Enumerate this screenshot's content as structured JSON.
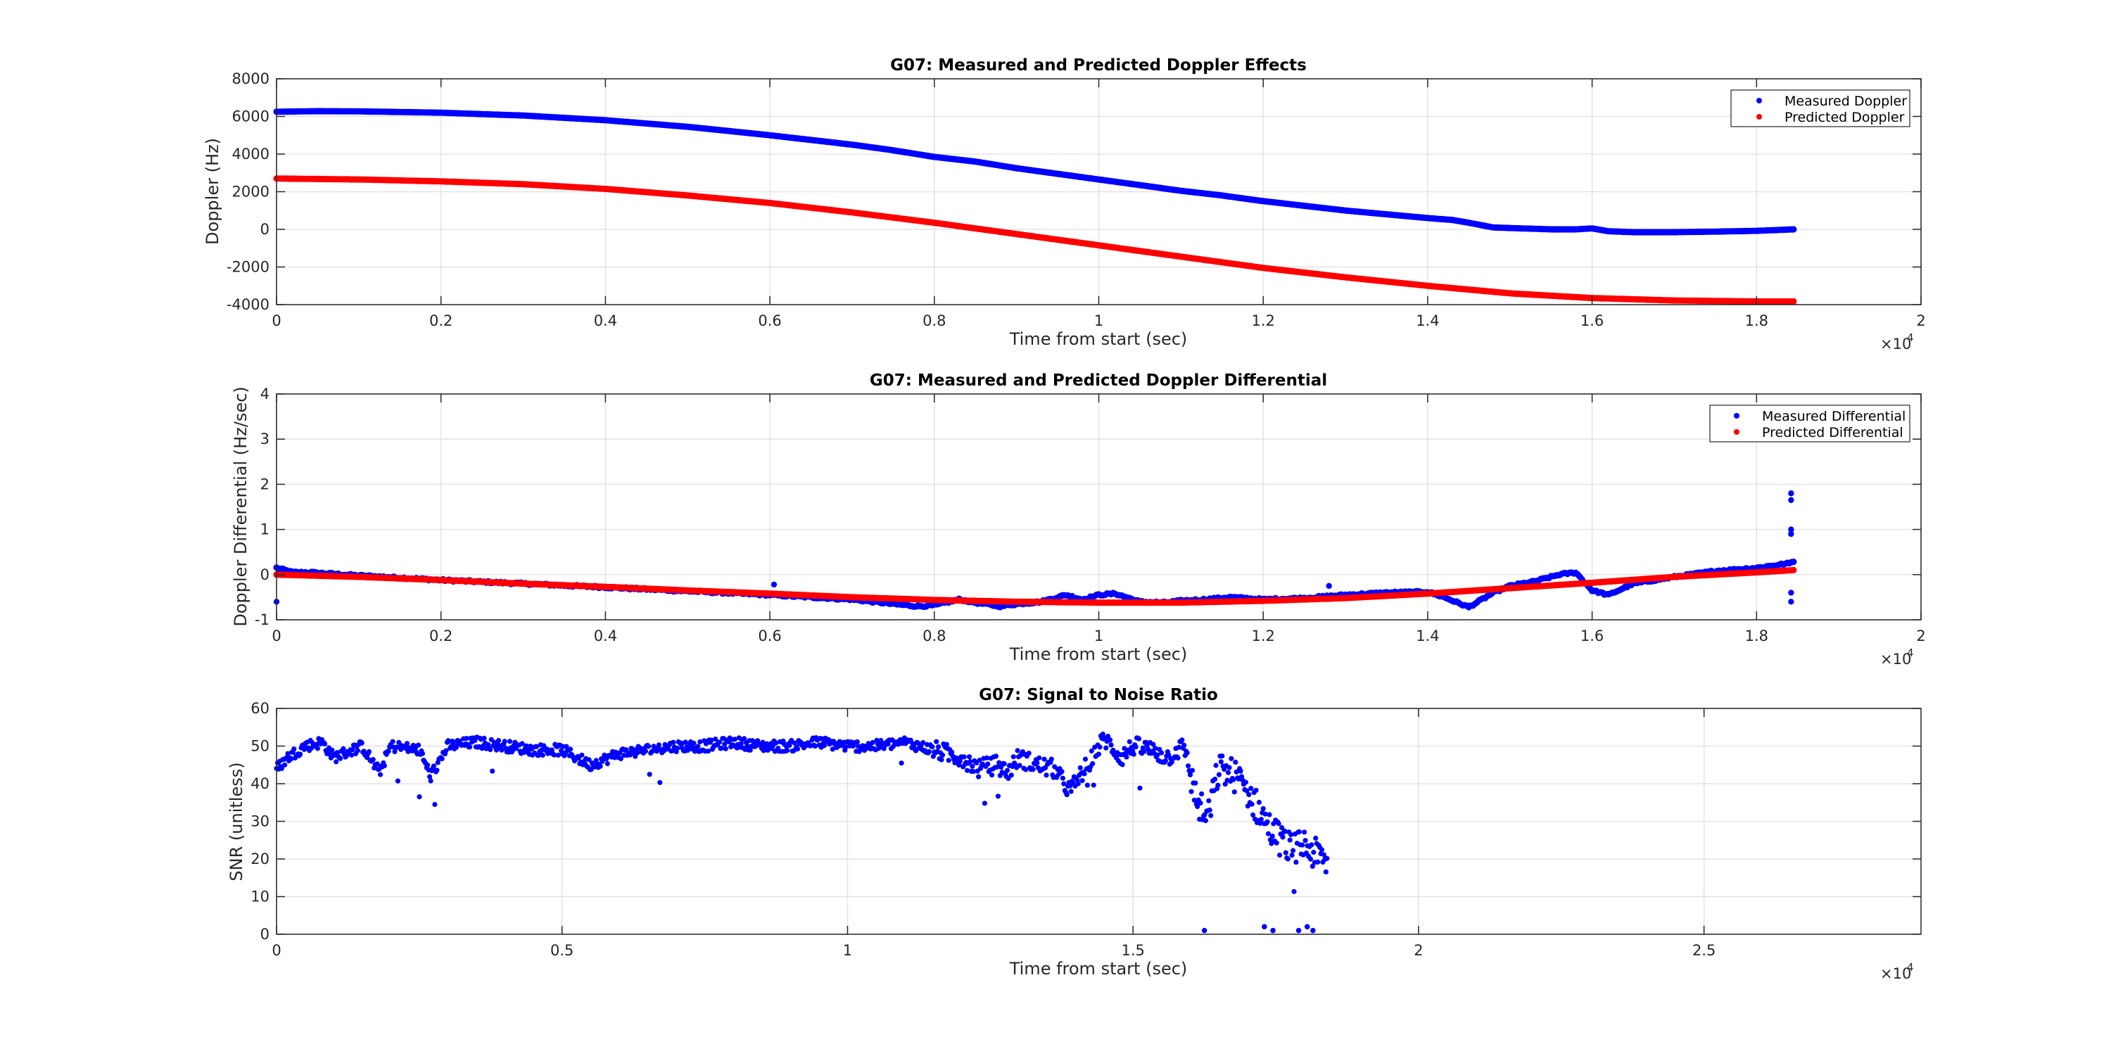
{
  "chart_data": [
    {
      "type": "scatter",
      "title": "G07: Measured and Predicted Doppler Effects",
      "xlabel": "Time from start (sec)",
      "ylabel": "Doppler (Hz)",
      "x_exponent_label": "×10",
      "x_exponent": "4",
      "xlim": [
        0,
        20000
      ],
      "ylim": [
        -4000,
        8000
      ],
      "x_ticks": [
        0,
        2000,
        4000,
        6000,
        8000,
        10000,
        12000,
        14000,
        16000,
        18000,
        20000
      ],
      "x_tick_labels": [
        "0",
        "0.2",
        "0.4",
        "0.6",
        "0.8",
        "1",
        "1.2",
        "1.4",
        "1.6",
        "1.8",
        "2"
      ],
      "y_ticks": [
        -4000,
        -2000,
        0,
        2000,
        4000,
        6000,
        8000
      ],
      "y_tick_labels": [
        "-4000",
        "-2000",
        "0",
        "2000",
        "4000",
        "6000",
        "8000"
      ],
      "grid": true,
      "legend_position": "top-right",
      "series": [
        {
          "name": "Measured Doppler",
          "color": "#0000ff",
          "x": [
            0,
            500,
            1000,
            2000,
            3000,
            4000,
            5000,
            6000,
            7000,
            7500,
            8000,
            8500,
            9000,
            9500,
            10000,
            10500,
            11000,
            11500,
            12000,
            12500,
            13000,
            13500,
            14000,
            14300,
            14500,
            14800,
            15500,
            15800,
            16000,
            16200,
            16500,
            17000,
            17500,
            18000,
            18450
          ],
          "y": [
            6250,
            6280,
            6270,
            6200,
            6050,
            5800,
            5450,
            5000,
            4500,
            4200,
            3850,
            3600,
            3250,
            2950,
            2650,
            2350,
            2050,
            1800,
            1500,
            1250,
            1000,
            800,
            600,
            500,
            350,
            100,
            0,
            0,
            50,
            -100,
            -150,
            -150,
            -120,
            -80,
            0
          ]
        },
        {
          "name": "Predicted Doppler",
          "color": "#ff0000",
          "x": [
            0,
            1000,
            2000,
            3000,
            4000,
            5000,
            6000,
            7000,
            8000,
            9000,
            10000,
            11000,
            12000,
            13000,
            14000,
            15000,
            16000,
            17000,
            18000,
            18450
          ],
          "y": [
            2700,
            2650,
            2550,
            2400,
            2150,
            1800,
            1400,
            900,
            350,
            -250,
            -850,
            -1450,
            -2050,
            -2550,
            -3000,
            -3400,
            -3650,
            -3780,
            -3830,
            -3830
          ]
        }
      ]
    },
    {
      "type": "scatter",
      "title": "G07: Measured and Predicted Doppler Differential",
      "xlabel": "Time from start (sec)",
      "ylabel": "Doppler Differential (Hz/sec)",
      "x_exponent_label": "×10",
      "x_exponent": "4",
      "xlim": [
        0,
        20000
      ],
      "ylim": [
        -1,
        4
      ],
      "x_ticks": [
        0,
        2000,
        4000,
        6000,
        8000,
        10000,
        12000,
        14000,
        16000,
        18000,
        20000
      ],
      "x_tick_labels": [
        "0",
        "0.2",
        "0.4",
        "0.6",
        "0.8",
        "1",
        "1.2",
        "1.4",
        "1.6",
        "1.8",
        "2"
      ],
      "y_ticks": [
        -1,
        0,
        1,
        2,
        3,
        4
      ],
      "y_tick_labels": [
        "-1",
        "0",
        "1",
        "2",
        "3",
        "4"
      ],
      "grid": true,
      "legend_position": "top-right",
      "series": [
        {
          "name": "Measured Differential",
          "color": "#0000ff",
          "x": [
            0,
            100,
            200,
            400,
            1000,
            2000,
            4000,
            6000,
            7000,
            7500,
            7800,
            8000,
            8300,
            8500,
            8800,
            9000,
            9300,
            9600,
            9800,
            10000,
            10200,
            10500,
            10800,
            11000,
            11300,
            11600,
            12000,
            12500,
            13000,
            13500,
            14000,
            14200,
            14500,
            14800,
            15000,
            15300,
            15600,
            15800,
            16000,
            16200,
            16500,
            17000,
            17500,
            18000,
            18400,
            18450
          ],
          "y": [
            0.15,
            0.1,
            0.05,
            0.05,
            -0.02,
            -0.12,
            -0.28,
            -0.45,
            -0.55,
            -0.65,
            -0.7,
            -0.68,
            -0.55,
            -0.62,
            -0.7,
            -0.65,
            -0.6,
            -0.45,
            -0.55,
            -0.45,
            -0.42,
            -0.6,
            -0.62,
            -0.58,
            -0.55,
            -0.5,
            -0.55,
            -0.52,
            -0.45,
            -0.4,
            -0.38,
            -0.5,
            -0.72,
            -0.4,
            -0.25,
            -0.15,
            0.0,
            0.05,
            -0.35,
            -0.45,
            -0.2,
            -0.05,
            0.08,
            0.15,
            0.25,
            0.3
          ],
          "outliers_x": [
            0,
            6050,
            12800,
            18420,
            18420,
            18420,
            18420,
            18420,
            18420
          ],
          "outliers_y": [
            -0.6,
            -0.22,
            -0.25,
            1.8,
            1.65,
            1.0,
            0.9,
            -0.4,
            -0.6
          ]
        },
        {
          "name": "Predicted Differential",
          "color": "#ff0000",
          "x": [
            0,
            1000,
            2000,
            3000,
            4000,
            5000,
            6000,
            7000,
            8000,
            9000,
            10000,
            11000,
            12000,
            13000,
            14000,
            15000,
            16000,
            17000,
            18000,
            18450
          ],
          "y": [
            0.0,
            -0.05,
            -0.12,
            -0.2,
            -0.27,
            -0.35,
            -0.42,
            -0.5,
            -0.56,
            -0.6,
            -0.62,
            -0.62,
            -0.58,
            -0.52,
            -0.42,
            -0.3,
            -0.18,
            -0.05,
            0.05,
            0.1
          ]
        }
      ]
    },
    {
      "type": "scatter",
      "title": "G07: Signal to Noise Ratio",
      "xlabel": "Time from start (sec)",
      "ylabel": "SNR (unitless)",
      "x_exponent_label": "×10",
      "x_exponent": "4",
      "xlim": [
        0,
        28800
      ],
      "ylim": [
        0,
        60
      ],
      "x_ticks": [
        0,
        5000,
        10000,
        15000,
        20000,
        25000
      ],
      "x_tick_labels": [
        "0",
        "0.5",
        "1",
        "1.5",
        "2",
        "2.5"
      ],
      "y_ticks": [
        0,
        10,
        20,
        30,
        40,
        50,
        60
      ],
      "y_tick_labels": [
        "0",
        "10",
        "20",
        "30",
        "40",
        "50",
        "60"
      ],
      "grid": true,
      "series": [
        {
          "name": "",
          "color": "#0000ff",
          "x": [
            0,
            200,
            500,
            800,
            1000,
            1500,
            1800,
            2000,
            2500,
            2700,
            3000,
            3500,
            4000,
            4500,
            5000,
            5500,
            6000,
            6500,
            7000,
            7500,
            8000,
            8500,
            9000,
            9500,
            10000,
            10500,
            11000,
            11500,
            12000,
            12300,
            12600,
            12800,
            13000,
            13300,
            13600,
            13900,
            14200,
            14500,
            14800,
            15000,
            15300,
            15600,
            15900,
            16100,
            16300,
            16500,
            16800,
            17000,
            17200,
            17400,
            17600,
            17800,
            18000,
            18200,
            18400
          ],
          "y": [
            44,
            47,
            50,
            51,
            47,
            50,
            43,
            50,
            49,
            42,
            50,
            51,
            50,
            49,
            49,
            45,
            48,
            49,
            50,
            50,
            51,
            50,
            50,
            51,
            50,
            50,
            51,
            49,
            47,
            44,
            45,
            43,
            47,
            45,
            44,
            38,
            45,
            52,
            47,
            50,
            49,
            47,
            50,
            36,
            30,
            44,
            42,
            38,
            33,
            28,
            25,
            22,
            24,
            21,
            19
          ],
          "low_x": [
            16250,
            17300,
            17450,
            17900,
            18050,
            18150
          ],
          "low_y": [
            1,
            2,
            1,
            1,
            2,
            1
          ]
        }
      ]
    }
  ]
}
